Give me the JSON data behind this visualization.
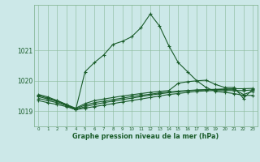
{
  "background_color": "#cce8e8",
  "grid_color": "#88b898",
  "line_color": "#1a5c2a",
  "title": "Graphe pression niveau de la mer (hPa)",
  "ylabel_values": [
    1019,
    1020,
    1021
  ],
  "ylim": [
    1018.5,
    1022.5
  ],
  "xlim": [
    -0.5,
    23.5
  ],
  "x_ticks": [
    0,
    1,
    2,
    3,
    4,
    5,
    6,
    7,
    8,
    9,
    10,
    11,
    12,
    13,
    14,
    15,
    16,
    17,
    18,
    19,
    20,
    21,
    22,
    23
  ],
  "series1": [
    1019.55,
    1019.47,
    1019.35,
    1019.22,
    1019.05,
    1020.3,
    1020.6,
    1020.85,
    1021.2,
    1021.3,
    1021.45,
    1021.75,
    1022.2,
    1021.8,
    1021.15,
    1020.6,
    1020.3,
    1020.0,
    1019.78,
    1019.65,
    1019.62,
    1019.58,
    1019.52,
    1019.52
  ],
  "series2": [
    1019.35,
    1019.28,
    1019.22,
    1019.15,
    1019.05,
    1019.1,
    1019.15,
    1019.2,
    1019.25,
    1019.3,
    1019.35,
    1019.4,
    1019.45,
    1019.5,
    1019.55,
    1019.58,
    1019.62,
    1019.65,
    1019.67,
    1019.68,
    1019.68,
    1019.68,
    1019.68,
    1019.7
  ],
  "series3": [
    1019.42,
    1019.35,
    1019.28,
    1019.18,
    1019.05,
    1019.15,
    1019.22,
    1019.28,
    1019.33,
    1019.38,
    1019.43,
    1019.48,
    1019.53,
    1019.57,
    1019.61,
    1019.64,
    1019.67,
    1019.69,
    1019.7,
    1019.71,
    1019.72,
    1019.72,
    1019.55,
    1019.65
  ],
  "series4": [
    1019.48,
    1019.4,
    1019.32,
    1019.2,
    1019.08,
    1019.2,
    1019.28,
    1019.33,
    1019.38,
    1019.43,
    1019.48,
    1019.52,
    1019.56,
    1019.6,
    1019.63,
    1019.66,
    1019.68,
    1019.7,
    1019.71,
    1019.72,
    1019.73,
    1019.74,
    1019.74,
    1019.75
  ],
  "series5": [
    1019.52,
    1019.43,
    1019.35,
    1019.22,
    1019.1,
    1019.25,
    1019.35,
    1019.4,
    1019.45,
    1019.5,
    1019.54,
    1019.58,
    1019.62,
    1019.65,
    1019.68,
    1019.92,
    1019.97,
    1020.0,
    1020.02,
    1019.88,
    1019.78,
    1019.78,
    1019.42,
    1019.72
  ]
}
